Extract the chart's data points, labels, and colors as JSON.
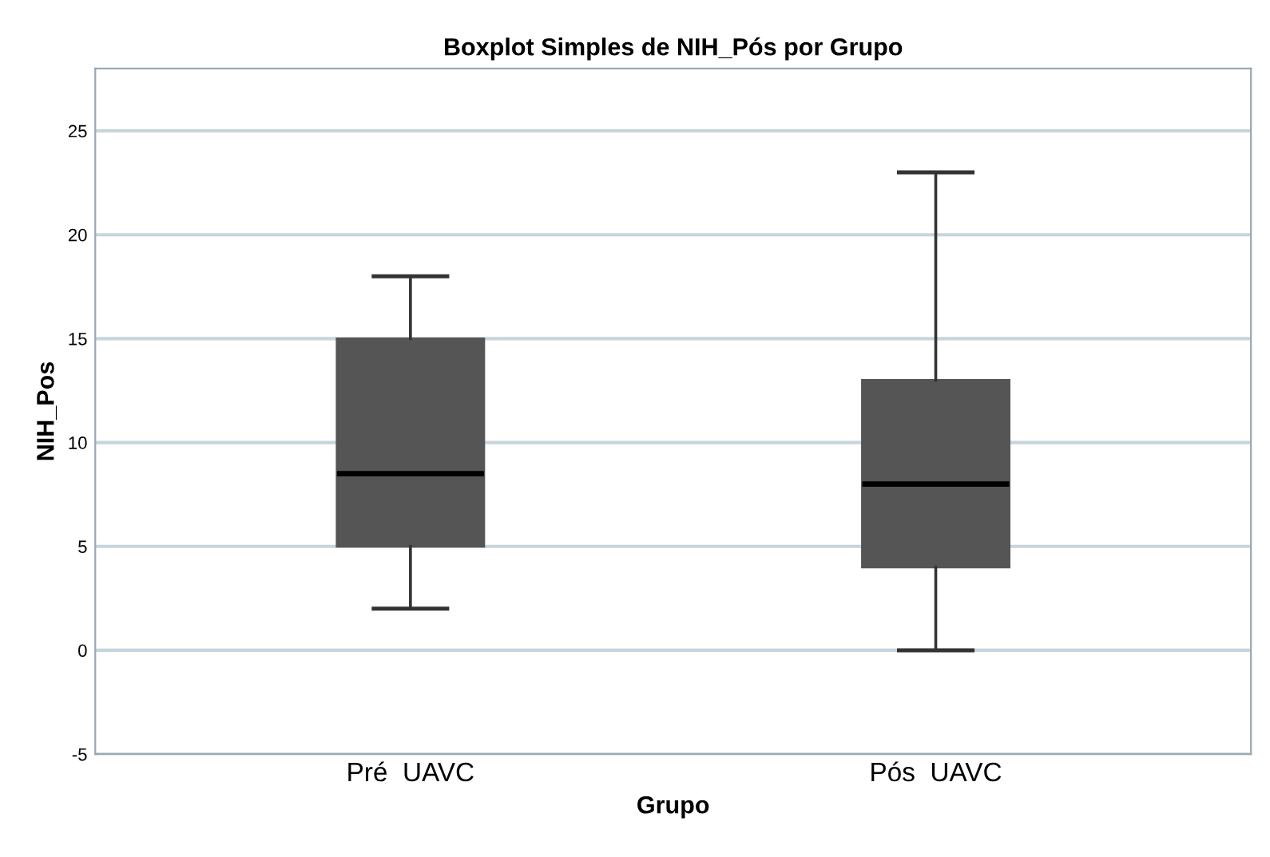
{
  "chart_data": {
    "type": "box",
    "title": "Boxplot Simples de NIH_Pós por Grupo",
    "xlabel": "Grupo",
    "ylabel": "NIH_Pos",
    "categories": [
      "Pré  UAVC",
      "Pós  UAVC"
    ],
    "boxes": [
      {
        "low": 2,
        "q1": 5,
        "median": 8.5,
        "q3": 15,
        "high": 18
      },
      {
        "low": 0,
        "q1": 4,
        "median": 8,
        "q3": 13,
        "high": 23
      }
    ],
    "color": "#555555",
    "ylim": [
      -5,
      28
    ],
    "yticks": [
      -5,
      0,
      5,
      10,
      15,
      20,
      25
    ],
    "grid": "y"
  }
}
